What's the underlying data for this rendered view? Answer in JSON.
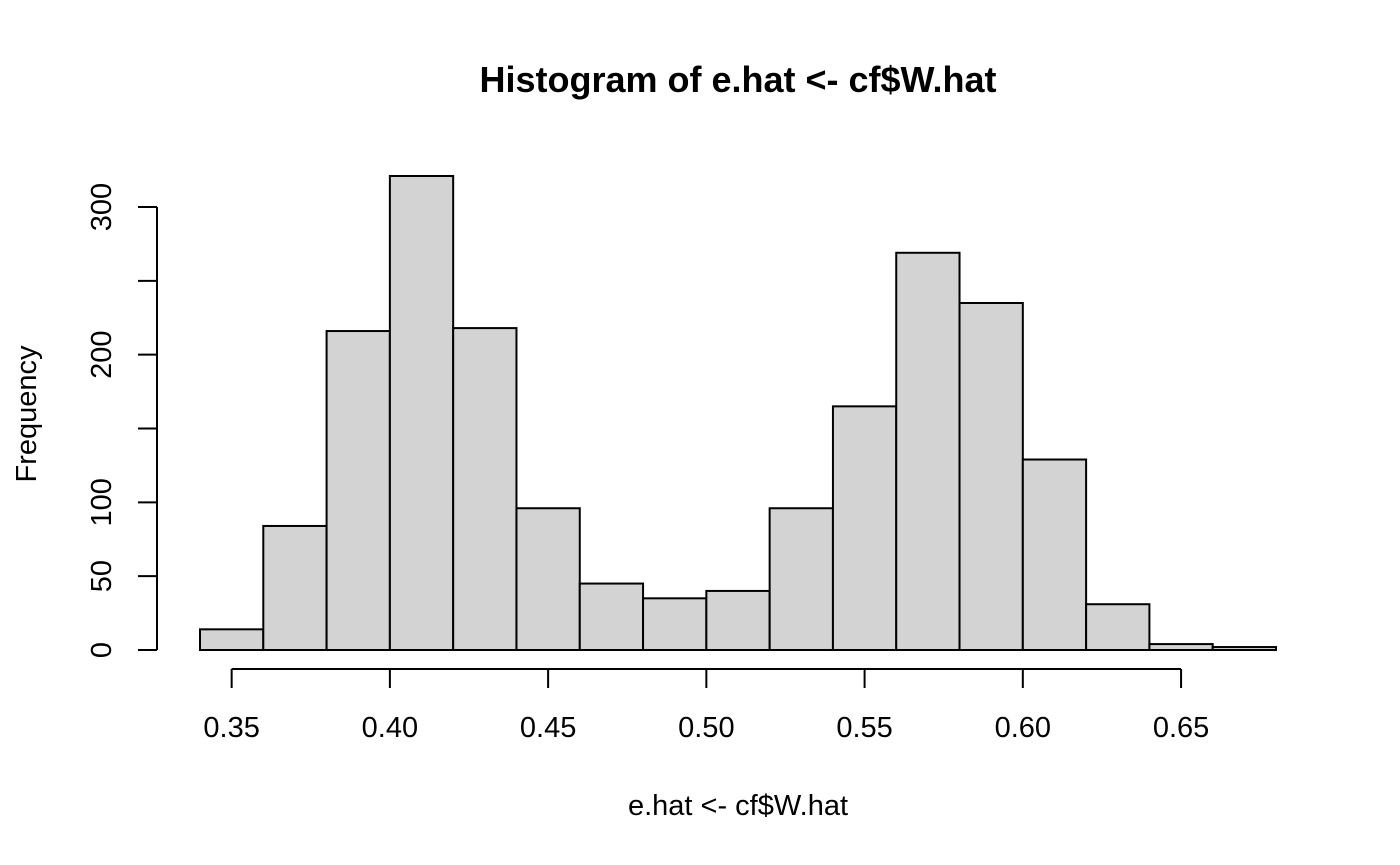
{
  "chart_data": {
    "type": "histogram",
    "title": "Histogram of e.hat <- cf$W.hat",
    "xlabel": "e.hat <- cf$W.hat",
    "ylabel": "Frequency",
    "bin_width": 0.02,
    "bins": [
      {
        "start": 0.34,
        "end": 0.36,
        "count": 14
      },
      {
        "start": 0.36,
        "end": 0.38,
        "count": 84
      },
      {
        "start": 0.38,
        "end": 0.4,
        "count": 216
      },
      {
        "start": 0.4,
        "end": 0.42,
        "count": 321
      },
      {
        "start": 0.42,
        "end": 0.44,
        "count": 218
      },
      {
        "start": 0.44,
        "end": 0.46,
        "count": 96
      },
      {
        "start": 0.46,
        "end": 0.48,
        "count": 45
      },
      {
        "start": 0.48,
        "end": 0.5,
        "count": 35
      },
      {
        "start": 0.5,
        "end": 0.52,
        "count": 40
      },
      {
        "start": 0.52,
        "end": 0.54,
        "count": 96
      },
      {
        "start": 0.54,
        "end": 0.56,
        "count": 165
      },
      {
        "start": 0.56,
        "end": 0.58,
        "count": 269
      },
      {
        "start": 0.58,
        "end": 0.6,
        "count": 235
      },
      {
        "start": 0.6,
        "end": 0.62,
        "count": 129
      },
      {
        "start": 0.62,
        "end": 0.64,
        "count": 31
      },
      {
        "start": 0.64,
        "end": 0.66,
        "count": 4
      },
      {
        "start": 0.66,
        "end": 0.68,
        "count": 2
      }
    ],
    "xlim": [
      0.34,
      0.68
    ],
    "ylim": [
      0,
      321
    ],
    "x_ticks": [
      0.35,
      0.4,
      0.45,
      0.5,
      0.55,
      0.6,
      0.65
    ],
    "x_tick_labels": [
      "0.35",
      "0.40",
      "0.45",
      "0.50",
      "0.55",
      "0.60",
      "0.65"
    ],
    "y_ticks": [
      0,
      50,
      100,
      150,
      200,
      250,
      300
    ],
    "y_tick_labels": [
      "0",
      "50",
      "100",
      "",
      "200",
      "",
      "300"
    ],
    "grid": false,
    "bar_fill": "#d3d3d3",
    "bar_stroke": "#000000"
  }
}
